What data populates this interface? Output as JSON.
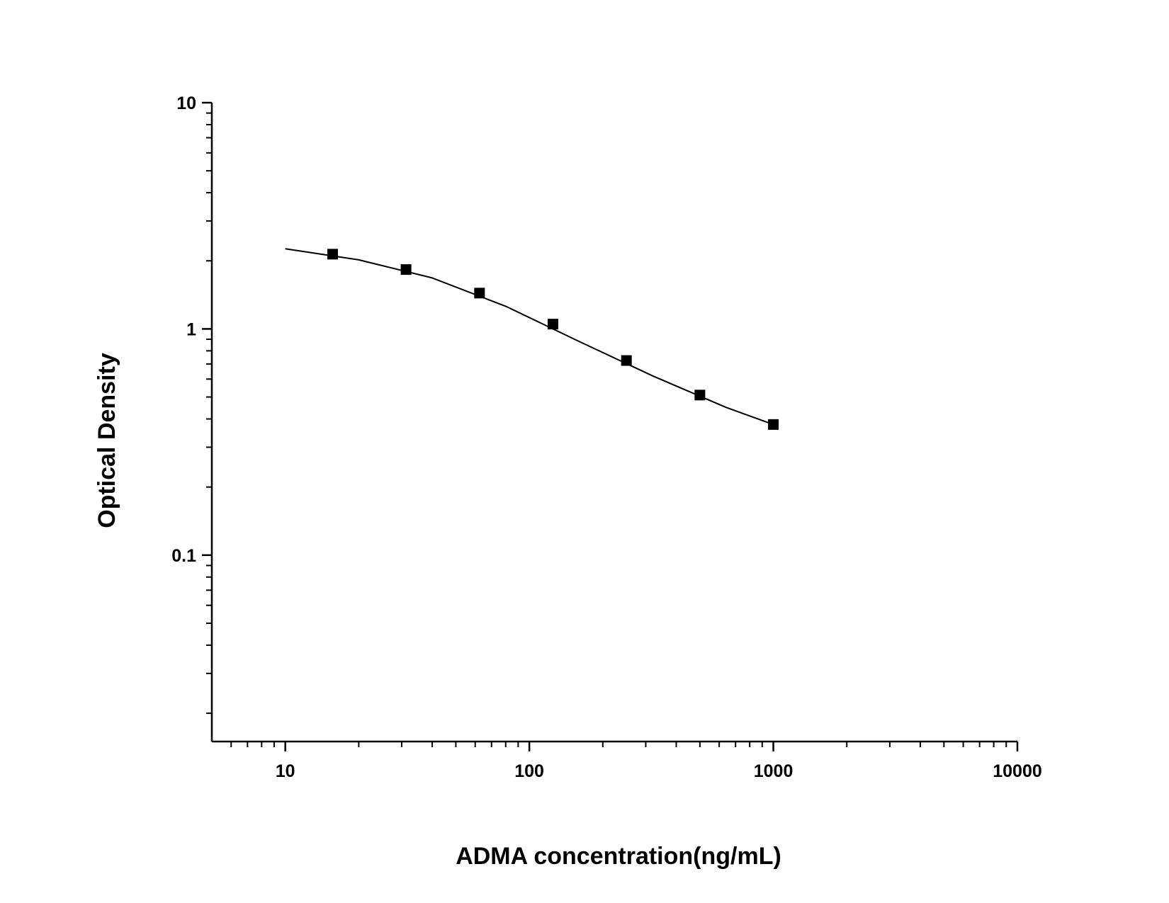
{
  "chart_data": {
    "type": "scatter",
    "x_label": "ADMA concentration(ng/mL)",
    "y_label": "Optical Density",
    "xscale": "log",
    "yscale": "log",
    "xlim": [
      5,
      10000
    ],
    "ylim": [
      0.015,
      10
    ],
    "xticks": [
      10,
      100,
      1000,
      10000
    ],
    "yticks": [
      0.1,
      1,
      10
    ],
    "xminorticks": [
      6,
      7,
      8,
      9,
      20,
      30,
      40,
      50,
      60,
      70,
      80,
      90,
      200,
      300,
      400,
      500,
      600,
      700,
      800,
      900,
      2000,
      3000,
      4000,
      5000,
      6000,
      7000,
      8000,
      9000
    ],
    "yminorticks": [
      0.02,
      0.03,
      0.04,
      0.05,
      0.06,
      0.07,
      0.08,
      0.09,
      0.2,
      0.3,
      0.4,
      0.5,
      0.6,
      0.7,
      0.8,
      0.9,
      2,
      3,
      4,
      5,
      6,
      7,
      8,
      9
    ],
    "series": [
      {
        "type": "scatter",
        "color": "#000000",
        "x": [
          15.625,
          31.25,
          62.5,
          125,
          250,
          500,
          1000
        ],
        "values": [
          2.14,
          1.83,
          1.44,
          1.05,
          0.725,
          0.51,
          0.378
        ]
      },
      {
        "type": "line",
        "color": "#000000",
        "x": [
          10,
          20,
          40,
          80,
          160,
          320,
          640,
          1000
        ],
        "values": [
          2.26,
          2.02,
          1.68,
          1.26,
          0.88,
          0.62,
          0.45,
          0.378
        ]
      }
    ]
  }
}
